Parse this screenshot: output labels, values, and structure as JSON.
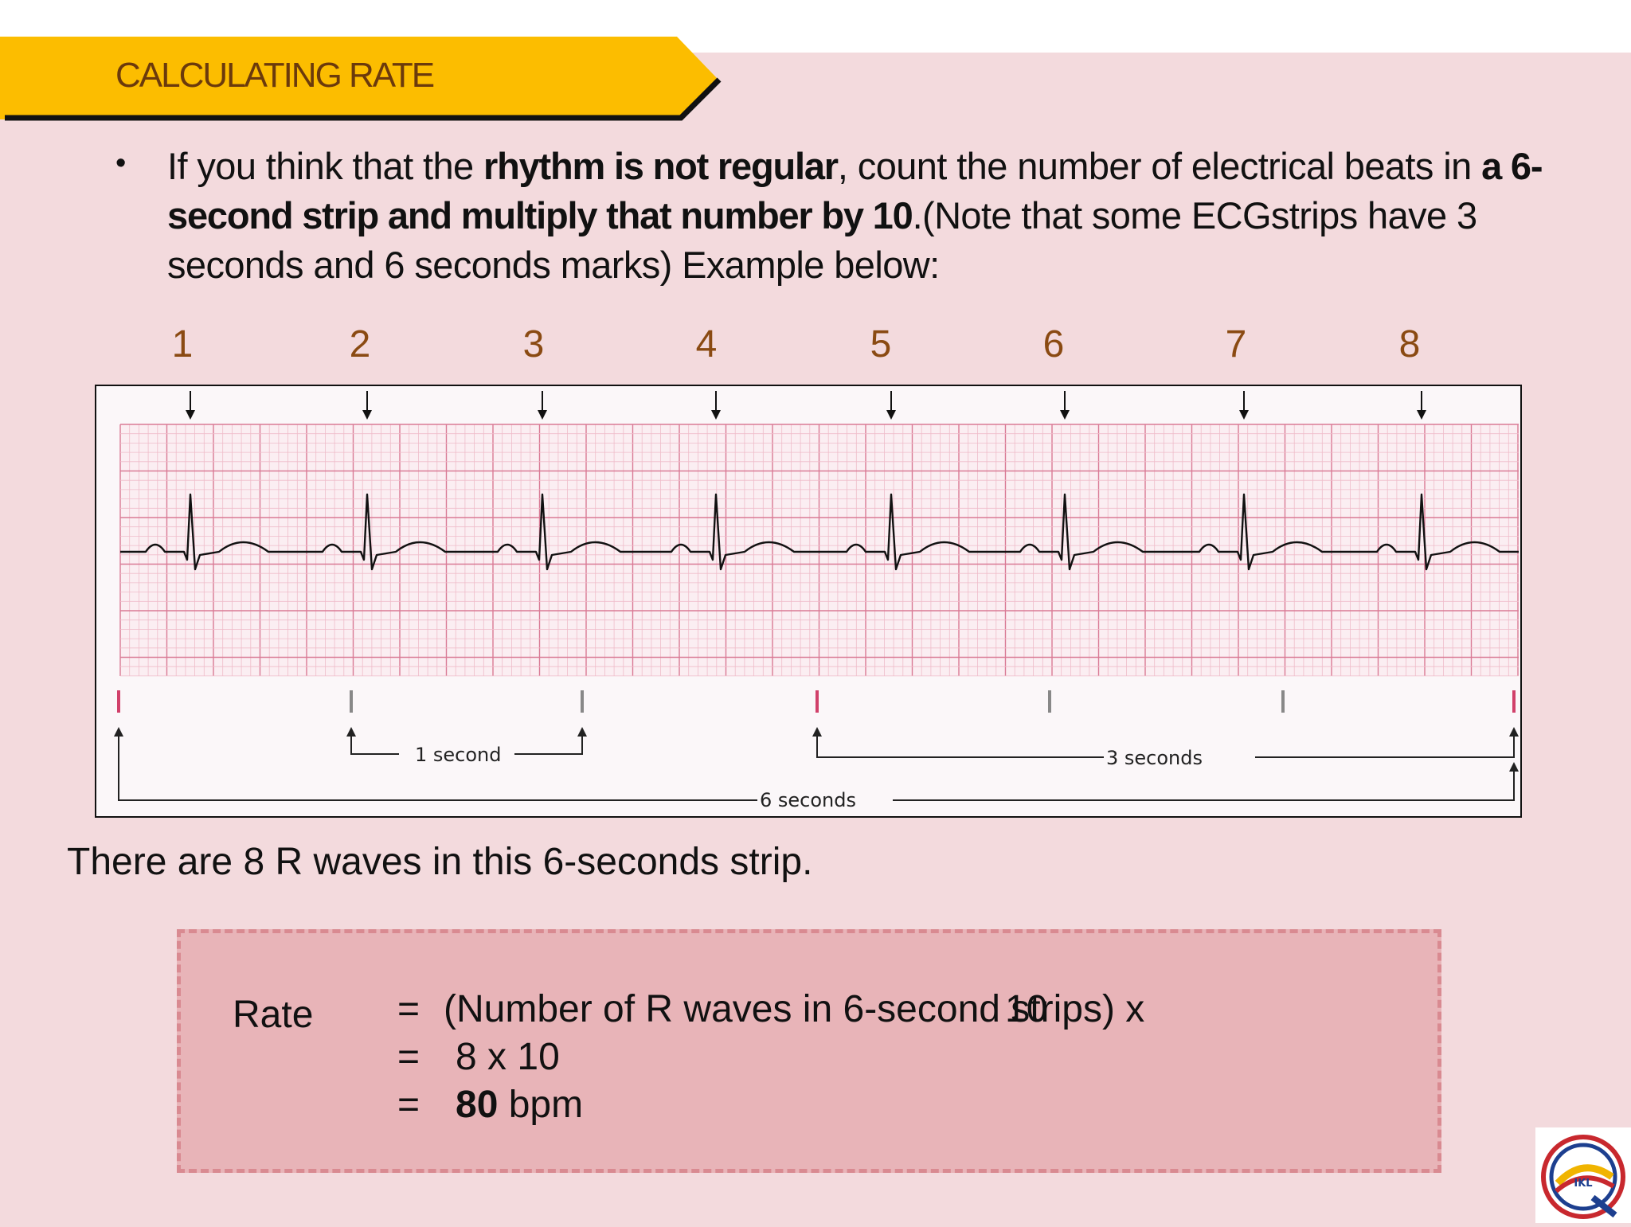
{
  "header": {
    "title": "CALCULATING RATE"
  },
  "bullet": {
    "p1": "If you think that the ",
    "b1": "rhythm is not regular",
    "p2": ", count the number of electrical beats in ",
    "b2": "a 6-second strip and multiply that number by 10",
    "p3": ".(Note that some ECGstrips have 3 seconds and 6 seconds marks) Example below:"
  },
  "beat_numbers": [
    "1",
    "2",
    "3",
    "4",
    "5",
    "6",
    "7",
    "8"
  ],
  "strip": {
    "one_second_label": "1 second",
    "three_seconds_label": "3 seconds",
    "six_seconds_label": "6 seconds"
  },
  "summary": "There are 8 R waves in this 6-seconds strip.",
  "rate_box": {
    "label": "Rate",
    "equals": "=",
    "line1": "(Number of R waves in 6-second strips) x",
    "line1_multiplier": "10",
    "line2": "8 x 10",
    "line3_value": "80",
    "line3_unit": "bpm"
  },
  "colors": {
    "background": "#f3dadd",
    "banner": "#fcbd00",
    "title_text": "#6b3a0c",
    "beat_number": "#8a4a12",
    "rate_box": "#e8b4b8",
    "ecg_grid": "#e8a3b6"
  },
  "logo": {
    "icon": "ikl-logo-icon"
  }
}
